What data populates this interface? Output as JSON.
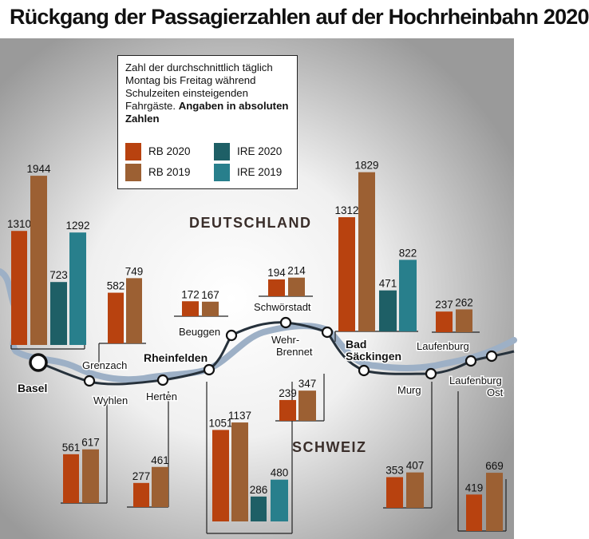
{
  "title": "Rückgang der Passagierzahlen auf der Hochrheinbahn 2020",
  "legend": {
    "note": "Zahl der durchschnittlich täglich Montag bis Freitag während Schulzeiten einsteigenden Fahrgäste.",
    "note_bold": "Angaben in absoluten Zahlen",
    "items": [
      {
        "label": "RB 2020",
        "color": "#b8420f"
      },
      {
        "label": "RB 2019",
        "color": "#9c6033"
      },
      {
        "label": "IRE 2020",
        "color": "#1e5f66"
      },
      {
        "label": "IRE 2019",
        "color": "#287f8c"
      }
    ]
  },
  "map": {
    "countries": [
      "DEUTSCHLAND",
      "SCHWEIZ"
    ]
  },
  "chart_data": {
    "type": "bar",
    "series": [
      "RB 2020",
      "RB 2019",
      "IRE 2020",
      "IRE 2019"
    ],
    "stations": [
      {
        "name": "Basel",
        "values": {
          "RB 2020": 1310,
          "RB 2019": 1944,
          "IRE 2020": 723,
          "IRE 2019": 1292
        }
      },
      {
        "name": "Grenzach",
        "values": {
          "RB 2020": 582,
          "RB 2019": 749
        }
      },
      {
        "name": "Wyhlen",
        "values": {
          "RB 2020": 561,
          "RB 2019": 617
        }
      },
      {
        "name": "Herten",
        "values": {
          "RB 2020": 277,
          "RB 2019": 461
        }
      },
      {
        "name": "Rheinfelden",
        "values": {
          "RB 2020": 1051,
          "RB 2019": 1137,
          "IRE 2020": 286,
          "IRE 2019": 480
        }
      },
      {
        "name": "Beuggen",
        "values": {
          "RB 2020": 172,
          "RB 2019": 167
        }
      },
      {
        "name": "Schwörstadt",
        "values": {
          "RB 2020": 194,
          "RB 2019": 214
        }
      },
      {
        "name": "Wehr-Brennet",
        "values": {
          "RB 2020": 239,
          "RB 2019": 347
        }
      },
      {
        "name": "Bad Säckingen",
        "values": {
          "RB 2020": 1312,
          "RB 2019": 1829,
          "IRE 2020": 471,
          "IRE 2019": 822
        }
      },
      {
        "name": "Murg",
        "values": {
          "RB 2020": 353,
          "RB 2019": 407
        }
      },
      {
        "name": "Laufenburg",
        "values": {
          "RB 2020": 237,
          "RB 2019": 262
        }
      },
      {
        "name": "Laufenburg Ost",
        "values": {
          "RB 2020": 419,
          "RB 2019": 669
        }
      }
    ]
  }
}
